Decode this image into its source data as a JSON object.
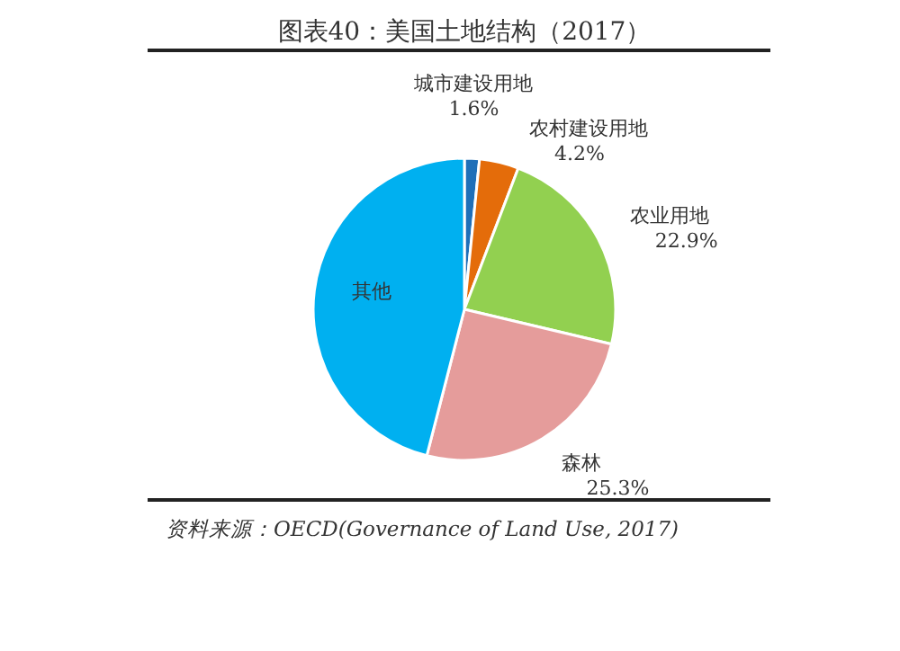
{
  "chart_data": {
    "type": "pie",
    "title": "图表40：美国土地结构（2017）",
    "categories": [
      "城市建设用地",
      "农村建设用地",
      "农业用地",
      "森林",
      "其他"
    ],
    "values": [
      1.6,
      4.2,
      22.9,
      25.3,
      46.0
    ],
    "value_labels": [
      "1.6%",
      "4.2%",
      "22.9%",
      "25.3%",
      null
    ],
    "colors": [
      "#1f6fb8",
      "#e46c0a",
      "#92d050",
      "#e59c9b",
      "#00b0f0"
    ],
    "annotations": [
      "资料来源：OECD(Governance of Land Use, 2017)"
    ]
  }
}
